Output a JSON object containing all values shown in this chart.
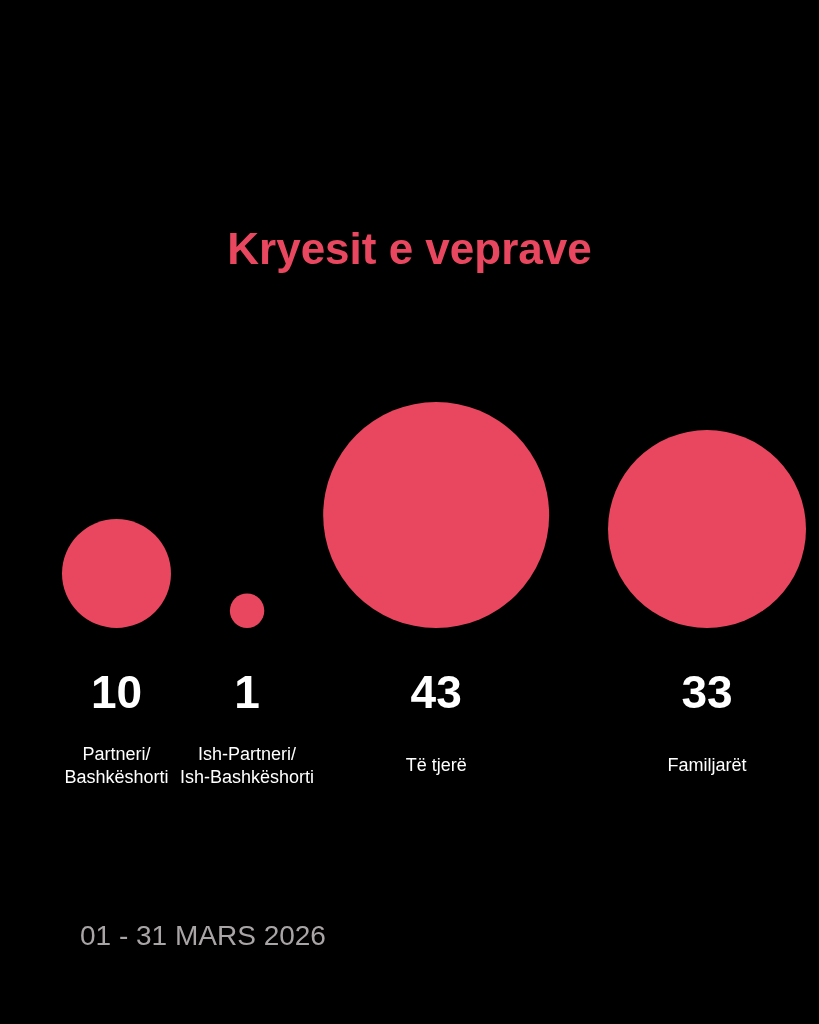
{
  "chart_data": {
    "type": "other",
    "title": "Kryesit e veprave",
    "categories": [
      "Partneri/Bashkëshorti",
      "Ish-Partneri/Ish-Bashkëshorti",
      "Të tjerë",
      "Familjarët"
    ],
    "values": [
      10,
      1,
      43,
      33
    ],
    "color": "#e8475f",
    "data_labels": true,
    "annotations": [
      "01 - 31 MARS 2026"
    ]
  }
}
